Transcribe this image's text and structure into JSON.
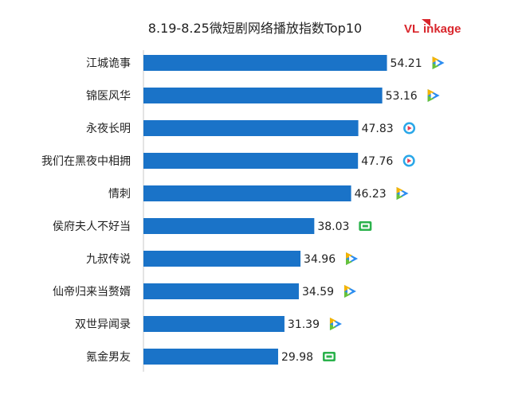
{
  "chart_data": {
    "type": "bar",
    "orientation": "horizontal",
    "title": "8.19-8.25微短剧网络播放指数Top10",
    "categories": [
      "江城诡事",
      "锦医风华",
      "永夜长明",
      "我们在黑夜中相拥",
      "情刺",
      "侯府夫人不好当",
      "九叔传说",
      "仙帝归来当赘婿",
      "双世异闻录",
      "氪金男友"
    ],
    "values": [
      54.21,
      53.16,
      47.83,
      47.76,
      46.23,
      38.03,
      34.96,
      34.59,
      31.39,
      29.98
    ],
    "platform_icons": [
      "tencent-video-icon",
      "tencent-video-icon",
      "youku-icon",
      "youku-icon",
      "tencent-video-icon",
      "iqiyi-icon",
      "tencent-video-icon",
      "tencent-video-icon",
      "tencent-video-icon",
      "iqiyi-icon"
    ],
    "xlim": [
      0,
      55
    ],
    "grid": false,
    "bar_color": "#1a73c8"
  },
  "logo": {
    "text_v": "VL",
    "text_rest": "inkage"
  },
  "colors": {
    "tencent_blue": "#2a8cf0",
    "tencent_green": "#66c23a",
    "tencent_yellow": "#f5b400",
    "youku_blue": "#2aa7e8",
    "youku_red": "#e8384f",
    "iqiyi_green": "#2bb24c"
  }
}
